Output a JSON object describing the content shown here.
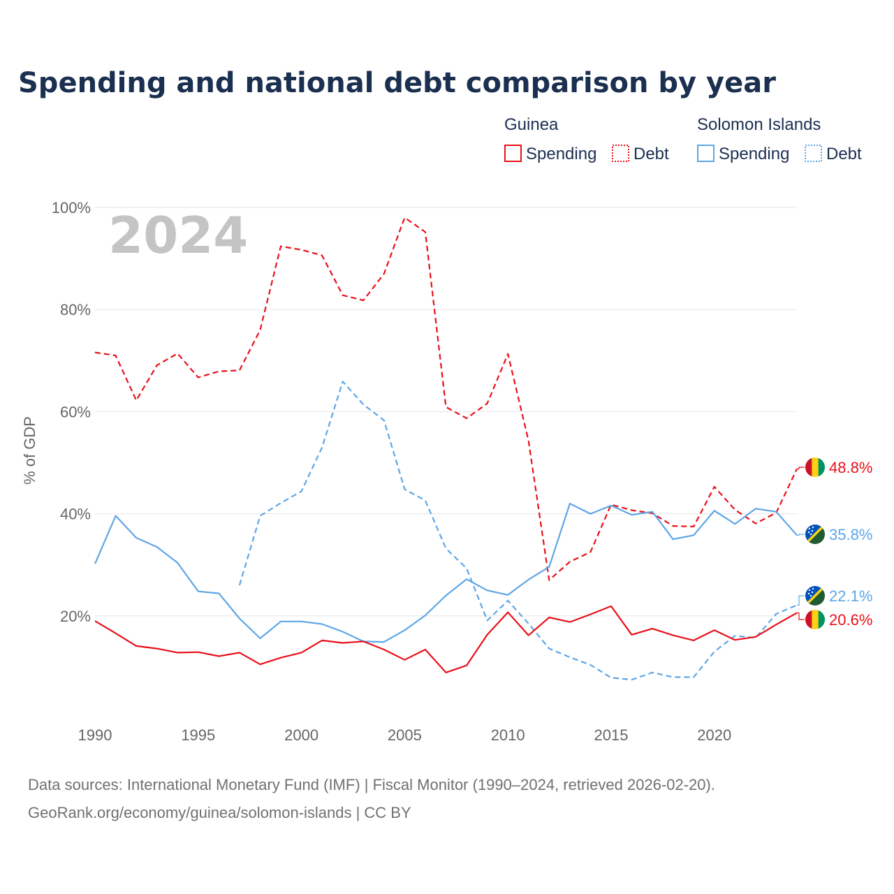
{
  "chart_data": {
    "type": "line",
    "title": "Spending and national debt comparison by year",
    "ylabel": "% of GDP",
    "xlabel": "",
    "xlim": [
      1990,
      2024
    ],
    "ylim": [
      0,
      100
    ],
    "x_ticks": [
      1990,
      1995,
      2000,
      2005,
      2010,
      2015,
      2020
    ],
    "x_tick_labels": [
      "1990",
      "1995",
      "2000",
      "2005",
      "2010",
      "2015",
      "2020"
    ],
    "y_ticks": [
      20,
      40,
      60,
      80,
      100
    ],
    "y_tick_labels": [
      "20%",
      "40%",
      "60%",
      "80%",
      "100%"
    ],
    "year_watermark": "2024",
    "legend": {
      "placement": "top-right",
      "groups": [
        {
          "country": "Guinea",
          "items": [
            "Spending",
            "Debt"
          ],
          "color": "#e8101a"
        },
        {
          "country": "Solomon Islands",
          "items": [
            "Spending",
            "Debt"
          ],
          "color": "#5ea6e6"
        }
      ]
    },
    "series": [
      {
        "name": "Guinea Debt",
        "country": "Guinea",
        "metric": "Debt",
        "color": "#e8101a",
        "style": "dashed",
        "start": 1990,
        "values": [
          71.6,
          71.0,
          62.2,
          69.1,
          71.4,
          66.7,
          67.9,
          68.1,
          76.0,
          92.4,
          91.7,
          90.6,
          82.8,
          81.8,
          87.0,
          98.0,
          95.2,
          60.9,
          58.7,
          61.6,
          71.3,
          54.3,
          27.0,
          30.6,
          32.5,
          41.8,
          40.7,
          40.1,
          37.6,
          37.5,
          45.3,
          40.8,
          38.1,
          40.2,
          48.8
        ],
        "end_label": "48.8%"
      },
      {
        "name": "Solomon Islands Spending",
        "country": "Solomon Islands",
        "metric": "Spending",
        "color": "#5ea6e6",
        "style": "solid",
        "start": 1990,
        "values": [
          30.2,
          39.6,
          35.3,
          33.5,
          30.4,
          24.8,
          24.4,
          19.5,
          15.6,
          18.9,
          18.9,
          18.4,
          16.9,
          15.0,
          14.9,
          17.2,
          20.1,
          24.0,
          27.2,
          25.0,
          24.1,
          27.1,
          29.6,
          42.0,
          40.0,
          41.6,
          39.8,
          40.4,
          35.0,
          35.8,
          40.6,
          38.0,
          41.0,
          40.4,
          35.8
        ],
        "end_label": "35.8%"
      },
      {
        "name": "Solomon Islands Debt",
        "country": "Solomon Islands",
        "metric": "Debt",
        "color": "#5ea6e6",
        "style": "dashed",
        "start": 1997,
        "values": [
          26.0,
          39.6,
          42.1,
          44.4,
          53.0,
          65.9,
          61.4,
          58.3,
          44.8,
          42.6,
          33.2,
          29.3,
          19.1,
          23.0,
          18.5,
          13.6,
          11.9,
          10.4,
          7.9,
          7.5,
          8.9,
          8.0,
          8.0,
          13.0,
          16.1,
          15.7,
          20.4,
          22.1
        ],
        "end_label": "22.1%"
      },
      {
        "name": "Guinea Spending",
        "country": "Guinea",
        "metric": "Spending",
        "color": "#e8101a",
        "style": "solid",
        "start": 1990,
        "values": [
          19.0,
          16.6,
          14.1,
          13.6,
          12.8,
          12.9,
          12.1,
          12.8,
          10.5,
          11.8,
          12.8,
          15.2,
          14.7,
          15.0,
          13.4,
          11.4,
          13.4,
          8.9,
          10.3,
          16.3,
          20.7,
          16.2,
          19.7,
          18.8,
          20.3,
          21.9,
          16.3,
          17.5,
          16.2,
          15.2,
          17.2,
          15.3,
          15.9,
          18.3,
          20.6
        ],
        "end_label": "20.6%"
      }
    ]
  },
  "source": {
    "line1": "Data sources: International Monetary Fund (IMF) | Fiscal Monitor (1990–2024, retrieved 2026-02-20).",
    "line2": "GeoRank.org/economy/guinea/solomon-islands | CC BY"
  },
  "flags": {
    "guinea": [
      "#ce1126",
      "#fcd116",
      "#009460"
    ],
    "solomon_islands": [
      "#0051ba",
      "#215b33",
      "#fcd116"
    ]
  }
}
